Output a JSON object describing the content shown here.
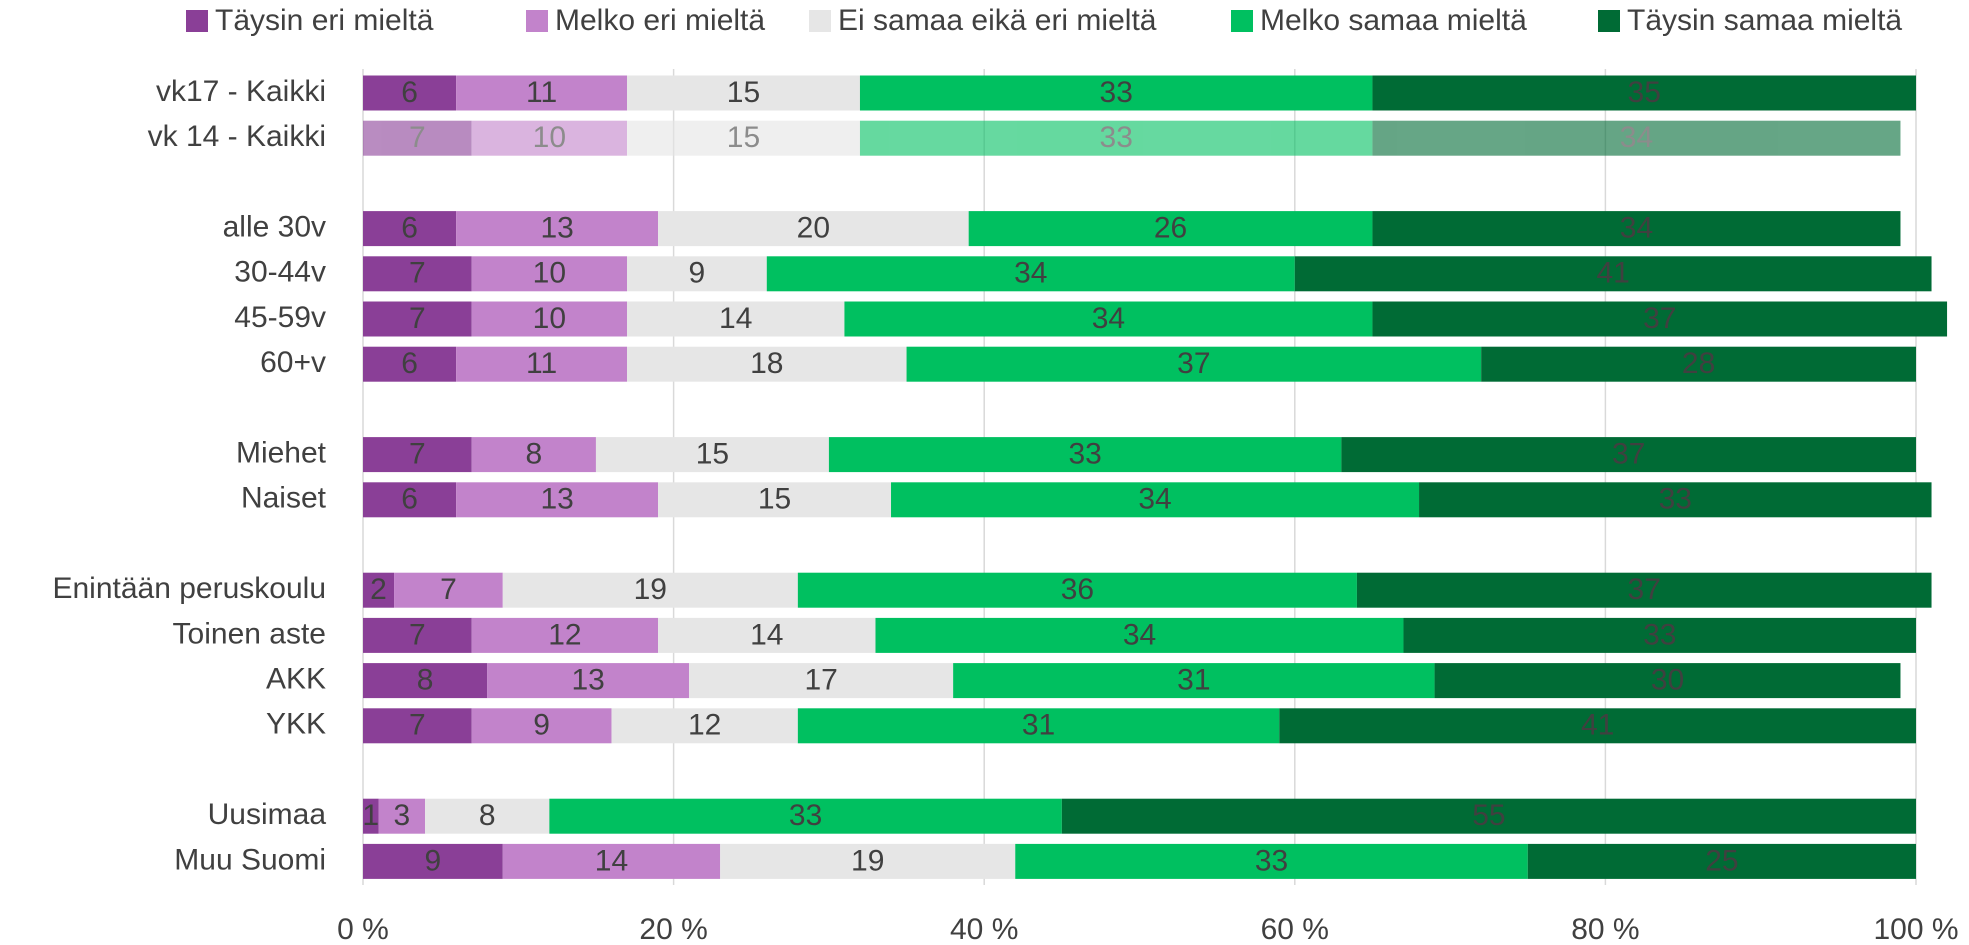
{
  "chart_data": {
    "type": "stacked_barh",
    "categories": [
      "vk17 - Kaikki",
      "vk 14 - Kaikki",
      null,
      "alle 30v",
      "30-44v",
      "45-59v",
      "60+v",
      null,
      "Miehet",
      "Naiset",
      null,
      "Enintään peruskoulu",
      "Toinen aste",
      "AKK",
      "YKK",
      null,
      "Uusimaa",
      "Muu Suomi"
    ],
    "series": [
      {
        "name": "Täysin eri mieltä",
        "color": "#8a3f97",
        "label_color": "#ffffff",
        "values": [
          6,
          7,
          null,
          6,
          7,
          7,
          6,
          null,
          7,
          6,
          null,
          2,
          7,
          8,
          7,
          null,
          1,
          9
        ]
      },
      {
        "name": "Melko eri mieltä",
        "color": "#c283cb",
        "label_color": "#ffffff",
        "values": [
          11,
          10,
          null,
          13,
          10,
          10,
          11,
          null,
          8,
          13,
          null,
          7,
          12,
          13,
          9,
          null,
          3,
          14
        ]
      },
      {
        "name": "Ei samaa eikä eri mieltä",
        "color": "#e6e6e6",
        "label_color": "#404040",
        "values": [
          15,
          15,
          null,
          20,
          9,
          14,
          18,
          null,
          15,
          15,
          null,
          19,
          14,
          17,
          12,
          null,
          8,
          19
        ]
      },
      {
        "name": "Melko samaa mieltä",
        "color": "#00c060",
        "label_color": "#ffffff",
        "values": [
          33,
          33,
          null,
          26,
          34,
          34,
          37,
          null,
          33,
          34,
          null,
          36,
          34,
          31,
          31,
          null,
          33,
          33
        ]
      },
      {
        "name": "Täysin samaa mieltä",
        "color": "#006b35",
        "label_color": "#ffffff",
        "values": [
          35,
          34,
          null,
          34,
          41,
          37,
          28,
          null,
          37,
          33,
          null,
          37,
          33,
          30,
          41,
          null,
          55,
          25
        ]
      }
    ],
    "muted_rows": [
      1
    ],
    "xlim": [
      0,
      100
    ],
    "xticks": [
      {
        "value": 0,
        "label": "0 %"
      },
      {
        "value": 20,
        "label": "20 %"
      },
      {
        "value": 40,
        "label": "40 %"
      },
      {
        "value": 60,
        "label": "60 %"
      },
      {
        "value": 80,
        "label": "80 %"
      },
      {
        "value": 100,
        "label": "100 %"
      }
    ],
    "grid": true,
    "legend": "top"
  }
}
